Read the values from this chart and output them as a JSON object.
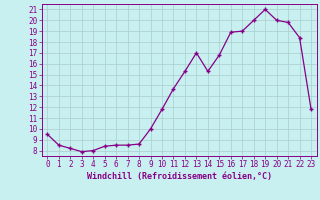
{
  "x": [
    0,
    1,
    2,
    3,
    4,
    5,
    6,
    7,
    8,
    9,
    10,
    11,
    12,
    13,
    14,
    15,
    16,
    17,
    18,
    19,
    20,
    21,
    22,
    23
  ],
  "y": [
    9.5,
    8.5,
    8.2,
    7.9,
    8.0,
    8.4,
    8.5,
    8.5,
    8.6,
    10.0,
    11.8,
    13.7,
    15.3,
    17.0,
    15.3,
    16.8,
    18.9,
    19.0,
    20.0,
    21.0,
    20.0,
    19.8,
    18.4,
    11.8
  ],
  "line_color": "#880088",
  "marker": "+",
  "marker_size": 3,
  "marker_linewidth": 1.0,
  "linewidth": 0.9,
  "bg_color": "#c8f0f0",
  "grid_color": "#aacccc",
  "xlabel": "Windchill (Refroidissement éolien,°C)",
  "xlim": [
    -0.5,
    23.5
  ],
  "ylim": [
    7.5,
    21.5
  ],
  "yticks": [
    8,
    9,
    10,
    11,
    12,
    13,
    14,
    15,
    16,
    17,
    18,
    19,
    20,
    21
  ],
  "xticks": [
    0,
    1,
    2,
    3,
    4,
    5,
    6,
    7,
    8,
    9,
    10,
    11,
    12,
    13,
    14,
    15,
    16,
    17,
    18,
    19,
    20,
    21,
    22,
    23
  ],
  "tick_fontsize": 5.5,
  "xlabel_fontsize": 6.0
}
